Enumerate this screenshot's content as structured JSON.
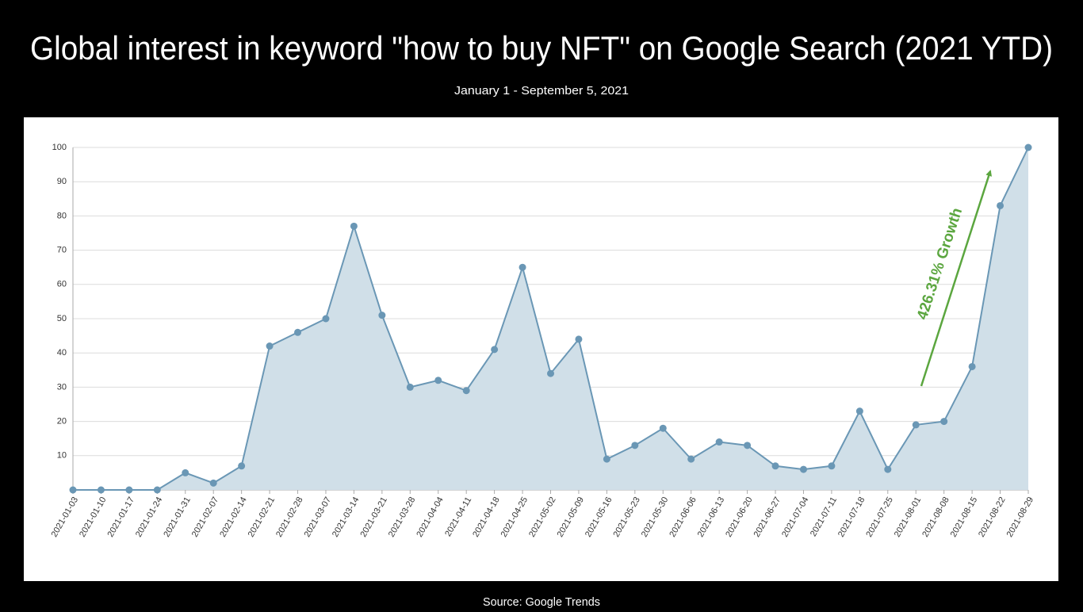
{
  "chart_data": {
    "type": "area",
    "title": "Global interest in keyword \"how to buy NFT\" on Google Search (2021 YTD)",
    "subtitle": "January  1 - September 5, 2021",
    "source": "Source: Google Trends",
    "categories": [
      "2021-01-03",
      "2021-01-10",
      "2021-01-17",
      "2021-01-24",
      "2021-01-31",
      "2021-02-07",
      "2021-02-14",
      "2021-02-21",
      "2021-02-28",
      "2021-03-07",
      "2021-03-14",
      "2021-03-21",
      "2021-03-28",
      "2021-04-04",
      "2021-04-11",
      "2021-04-18",
      "2021-04-25",
      "2021-05-02",
      "2021-05-09",
      "2021-05-16",
      "2021-05-23",
      "2021-05-30",
      "2021-06-06",
      "2021-06-13",
      "2021-06-20",
      "2021-06-27",
      "2021-07-04",
      "2021-07-11",
      "2021-07-18",
      "2021-07-25",
      "2021-08-01",
      "2021-08-08",
      "2021-08-15",
      "2021-08-22",
      "2021-08-29"
    ],
    "values": [
      0,
      0,
      0,
      0,
      5,
      2,
      7,
      42,
      46,
      50,
      77,
      51,
      30,
      32,
      29,
      41,
      65,
      34,
      44,
      9,
      13,
      18,
      9,
      14,
      13,
      7,
      6,
      7,
      23,
      6,
      19,
      20,
      36,
      83,
      100
    ],
    "color": "#6a97b5",
    "area_color": "#d0dfe8",
    "ylim": [
      0,
      100
    ],
    "yticks": [
      10,
      20,
      30,
      40,
      50,
      60,
      70,
      80,
      90,
      100
    ],
    "grid": true,
    "annotation": {
      "text": "426.31% Growth",
      "color": "#5ba63f"
    }
  }
}
